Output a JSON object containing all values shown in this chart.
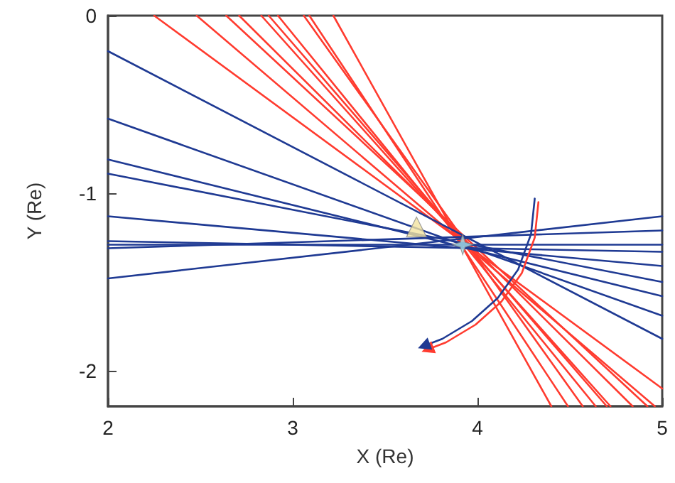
{
  "chart_data": {
    "type": "line",
    "xlabel": "X (Re)",
    "ylabel": "Y (Re)",
    "xlim": [
      2,
      5
    ],
    "xticks": [
      2,
      3,
      4,
      5
    ],
    "ylim": [
      -2.2,
      0
    ],
    "yticks": [
      0,
      -1,
      -2
    ],
    "grid": false,
    "marker": "none",
    "series": [
      {
        "color": "#ff3b2f",
        "x": [
          3.22,
          4.4
        ],
        "values": [
          0,
          -2.2
        ]
      },
      {
        "color": "#ff3b2f",
        "x": [
          3.09,
          4.49
        ],
        "values": [
          0,
          -2.2
        ]
      },
      {
        "color": "#ff3b2f",
        "x": [
          3.06,
          4.57
        ],
        "values": [
          0,
          -2.2
        ]
      },
      {
        "color": "#ff3b2f",
        "x": [
          2.92,
          4.64
        ],
        "values": [
          0,
          -2.2
        ]
      },
      {
        "color": "#ff3b2f",
        "x": [
          2.87,
          4.7
        ],
        "values": [
          0,
          -2.2
        ]
      },
      {
        "color": "#ff3b2f",
        "x": [
          2.83,
          4.72
        ],
        "values": [
          0,
          -2.2
        ]
      },
      {
        "color": "#ff3b2f",
        "x": [
          2.71,
          4.84
        ],
        "values": [
          0,
          -2.2
        ]
      },
      {
        "color": "#ff3b2f",
        "x": [
          2.64,
          4.92
        ],
        "values": [
          0,
          -2.2
        ]
      },
      {
        "color": "#ff3b2f",
        "x": [
          2.48,
          4.96
        ],
        "values": [
          0,
          -2.2
        ]
      },
      {
        "color": "#ff3b2f",
        "x": [
          2.25,
          5
        ],
        "values": [
          0,
          -2.1
        ]
      },
      {
        "color": "#1f3a93",
        "x": [
          2,
          5
        ],
        "values": [
          -0.2,
          -1.82
        ]
      },
      {
        "color": "#1f3a93",
        "x": [
          2,
          5
        ],
        "values": [
          -0.58,
          -1.69
        ]
      },
      {
        "color": "#1f3a93",
        "x": [
          2,
          5
        ],
        "values": [
          -0.81,
          -1.58
        ]
      },
      {
        "color": "#1f3a93",
        "x": [
          2,
          5
        ],
        "values": [
          -0.89,
          -1.5
        ]
      },
      {
        "color": "#1f3a93",
        "x": [
          2,
          5
        ],
        "values": [
          -1.13,
          -1.41
        ]
      },
      {
        "color": "#1f3a93",
        "x": [
          2,
          5
        ],
        "values": [
          -1.27,
          -1.33
        ]
      },
      {
        "color": "#1f3a93",
        "x": [
          2,
          5
        ],
        "values": [
          -1.29,
          -1.29
        ]
      },
      {
        "color": "#1f3a93",
        "x": [
          2,
          5
        ],
        "values": [
          -1.31,
          -1.21
        ]
      },
      {
        "color": "#1f3a93",
        "x": [
          2,
          5
        ],
        "values": [
          -1.48,
          -1.13
        ]
      },
      {
        "color": "#ff3b2f",
        "x": [
          4.33,
          4.31,
          4.24,
          4.13,
          3.99,
          3.83,
          3.73
        ],
        "values": [
          -1.05,
          -1.25,
          -1.45,
          -1.61,
          -1.74,
          -1.84,
          -1.88
        ]
      },
      {
        "color": "#1f3a93",
        "x": [
          4.31,
          4.29,
          4.22,
          4.11,
          3.97,
          3.81,
          3.71
        ],
        "values": [
          -1.03,
          -1.23,
          -1.43,
          -1.59,
          -1.72,
          -1.82,
          -1.86
        ]
      },
      {
        "type": "scatter",
        "marker": "triangle",
        "color": "#f3e3a0",
        "x": [
          3.67
        ],
        "values": [
          -1.19
        ]
      },
      {
        "type": "scatter",
        "marker": "star",
        "color": "#a8e0e8",
        "x": [
          3.92
        ],
        "values": [
          -1.29
        ]
      }
    ]
  }
}
